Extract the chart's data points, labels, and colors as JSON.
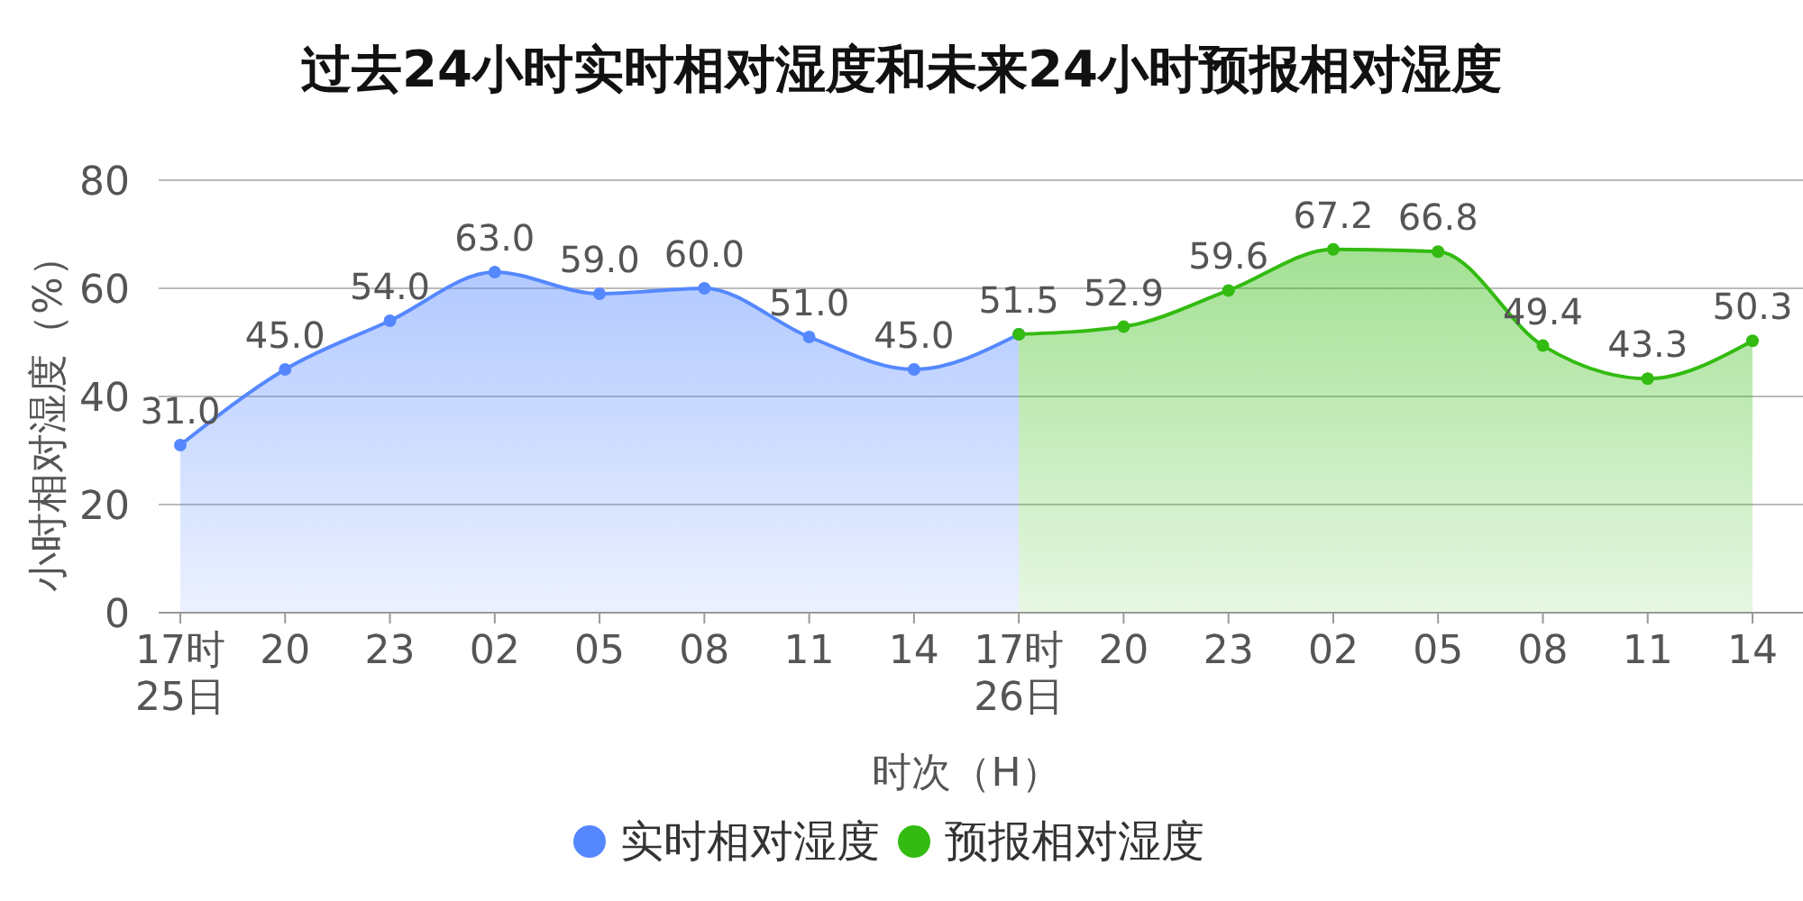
{
  "chart_data": {
    "type": "area",
    "title": "过去24小时实时相对湿度和未来24小时预报相对湿度",
    "xlabel": "时次（H）",
    "ylabel": "小时相对湿度（%）",
    "categories": [
      "17时\n25日",
      "20",
      "23",
      "02",
      "05",
      "08",
      "11",
      "14",
      "17时\n26日",
      "20",
      "23",
      "02",
      "05",
      "08",
      "11",
      "14"
    ],
    "ylim": [
      0,
      80
    ],
    "yticks": [
      0,
      20,
      40,
      60,
      80
    ],
    "grid": "y",
    "legend": "bottom",
    "marker": "circle",
    "series": [
      {
        "name": "实时相对湿度",
        "color": "#5588ff",
        "values": [
          31.0,
          45.0,
          54.0,
          63.0,
          59.0,
          60.0,
          51.0,
          45.0,
          51.5,
          null,
          null,
          null,
          null,
          null,
          null,
          null
        ],
        "value_labels": [
          "31.0",
          "45.0",
          "54.0",
          "63.0",
          "59.0",
          "60.0",
          "51.0",
          "45.0",
          "51.5",
          null,
          null,
          null,
          null,
          null,
          null,
          null
        ]
      },
      {
        "name": "预报相对湿度",
        "color": "#33bb11",
        "values": [
          null,
          null,
          null,
          null,
          null,
          null,
          null,
          null,
          51.5,
          52.9,
          59.6,
          67.2,
          66.8,
          49.4,
          43.3,
          50.3
        ],
        "value_labels": [
          null,
          null,
          null,
          null,
          null,
          null,
          null,
          null,
          null,
          "52.9",
          "59.6",
          "67.2",
          "66.8",
          "49.4",
          "43.3",
          "50.3"
        ]
      }
    ]
  }
}
